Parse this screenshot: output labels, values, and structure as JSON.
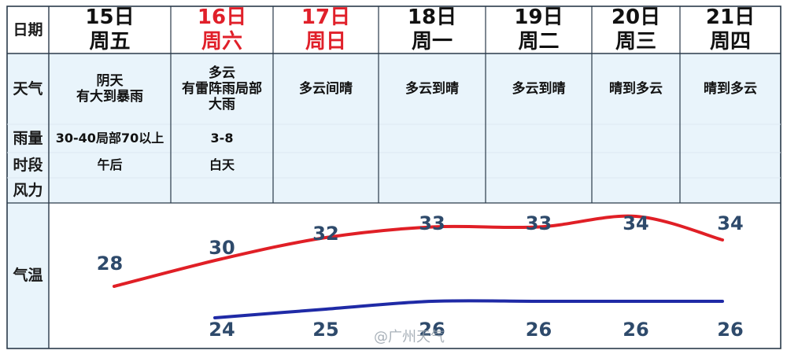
{
  "table": {
    "row_labels": {
      "date": "日期",
      "weather": "天气",
      "rain": "雨量",
      "period": "时段",
      "wind": "风力",
      "temp": "气温"
    },
    "days": [
      {
        "date": "15日",
        "weekday": "周五",
        "weather": "阴天\n有大到暴雨",
        "rain": "30-40局部70以上",
        "period": "午后",
        "wind": "",
        "highlight": false
      },
      {
        "date": "16日",
        "weekday": "周六",
        "weather": "多云\n有雷阵雨局部\n大雨",
        "rain": "3-8",
        "period": "白天",
        "wind": "",
        "highlight": true
      },
      {
        "date": "17日",
        "weekday": "周日",
        "weather": "多云间晴",
        "rain": "",
        "period": "",
        "wind": "",
        "highlight": true
      },
      {
        "date": "18日",
        "weekday": "周一",
        "weather": "多云到晴",
        "rain": "",
        "period": "",
        "wind": "",
        "highlight": false
      },
      {
        "date": "19日",
        "weekday": "周二",
        "weather": "多云到晴",
        "rain": "",
        "period": "",
        "wind": "",
        "highlight": false
      },
      {
        "date": "20日",
        "weekday": "周三",
        "weather": "晴到多云",
        "rain": "",
        "period": "",
        "wind": "",
        "highlight": false
      },
      {
        "date": "21日",
        "weekday": "周四",
        "weather": "晴到多云",
        "rain": "",
        "period": "",
        "wind": "",
        "highlight": false
      }
    ]
  },
  "watermark": "@广州天气",
  "colors": {
    "highlight_text": "#e0202a",
    "grid_line": "#2a3a4a",
    "row_fill": "#e9f4fb",
    "high_line": "#e01f26",
    "low_line": "#1f2aa6",
    "temp_text": "#2e4a6b"
  },
  "chart_data": {
    "type": "line",
    "categories": [
      "15日",
      "16日",
      "17日",
      "18日",
      "19日",
      "20日",
      "21日"
    ],
    "series": [
      {
        "values": [
          28,
          30,
          32,
          33,
          33,
          34,
          34
        ]
      },
      {
        "values": [
          null,
          24,
          25,
          26,
          26,
          26,
          26
        ]
      }
    ]
  }
}
